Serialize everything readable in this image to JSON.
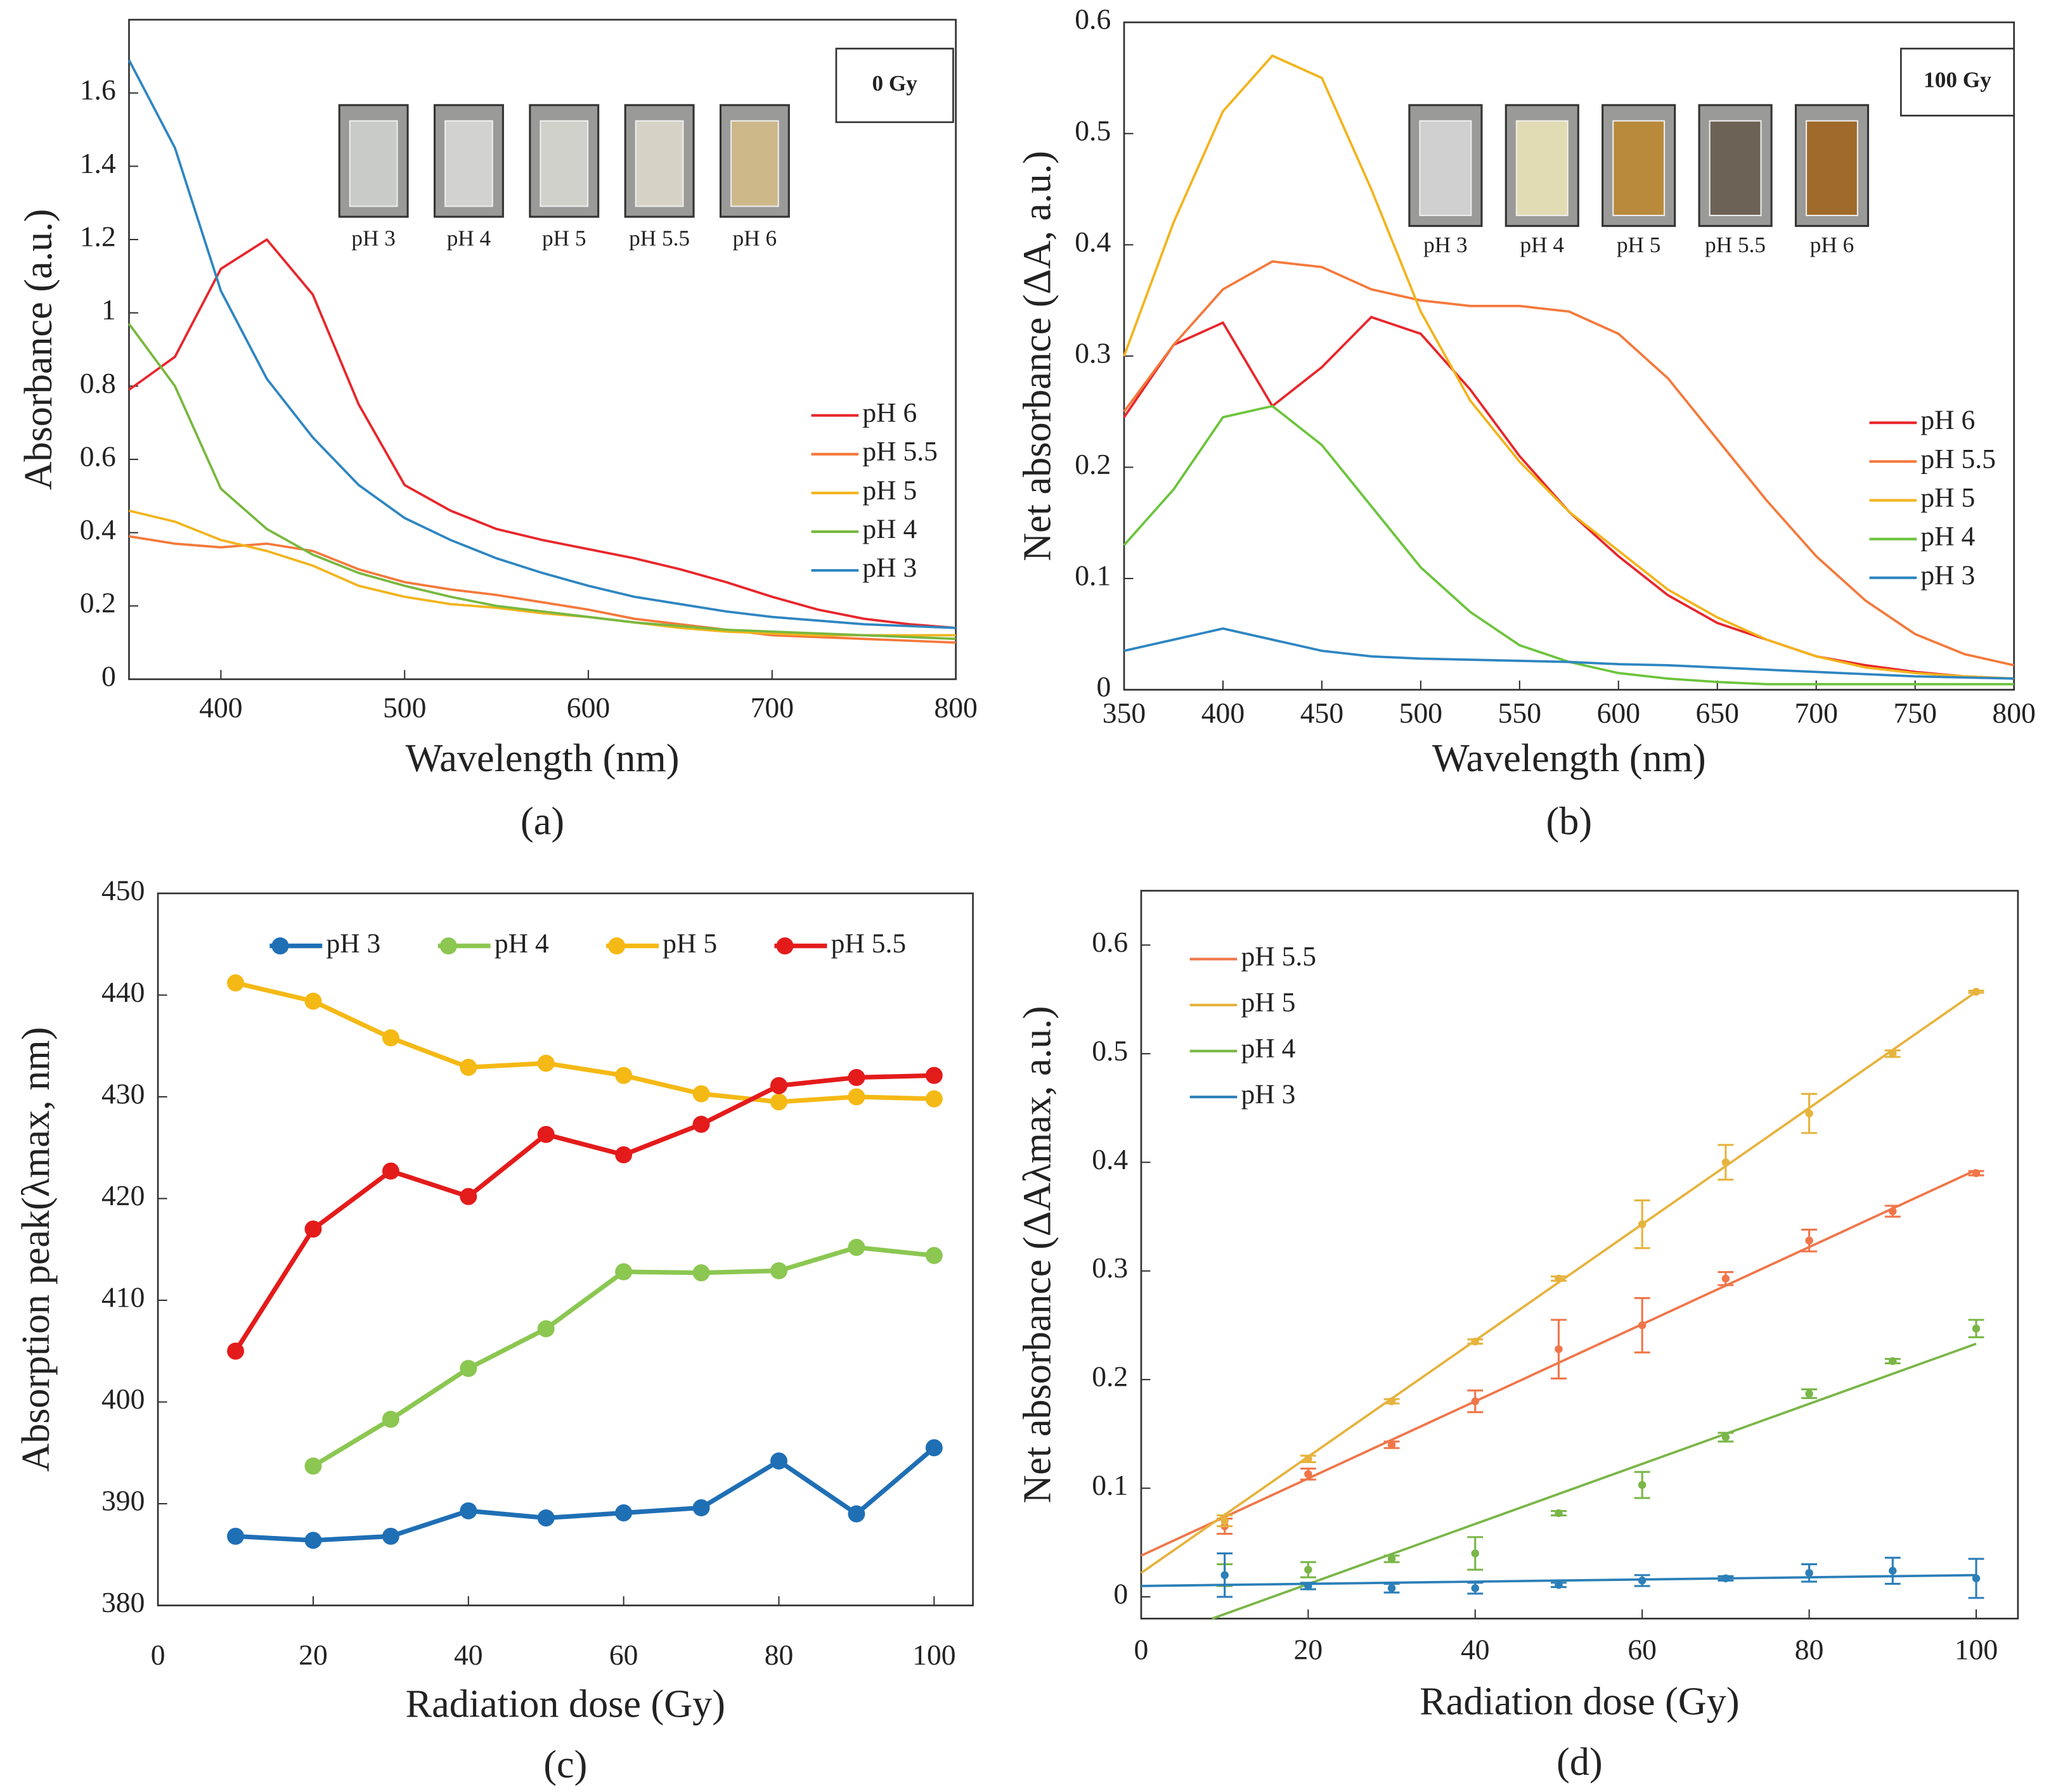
{
  "chart_data": [
    {
      "type": "line",
      "panel_label": "(a)",
      "x_label": "Wavelength (nm)",
      "y_label": "Absorbance (a.u.)",
      "xlim": [
        350,
        800
      ],
      "xticks": [
        400,
        500,
        600,
        700,
        800
      ],
      "ylim": [
        0,
        1.8
      ],
      "yticks": [
        0,
        0.2,
        0.4,
        0.6,
        0.8,
        1,
        1.2,
        1.4,
        1.6
      ],
      "legend": "center right",
      "dose_label": "0 Gy",
      "vials": [
        "pH 3",
        "pH 4",
        "pH 5",
        "pH 5.5",
        "pH 6"
      ],
      "vial_colors": [
        "#c9cbc9",
        "#d2d3d1",
        "#d1d1cb",
        "#d6d3c6",
        "#cdb88a"
      ],
      "x": [
        350,
        375,
        400,
        425,
        450,
        475,
        500,
        525,
        550,
        575,
        600,
        625,
        650,
        675,
        700,
        725,
        750,
        775,
        800
      ],
      "series": [
        {
          "name": "pH 6",
          "color": "#e8262b",
          "values": [
            0.79,
            0.88,
            1.12,
            1.2,
            1.05,
            0.75,
            0.53,
            0.46,
            0.41,
            0.38,
            0.355,
            0.33,
            0.3,
            0.265,
            0.225,
            0.19,
            0.165,
            0.15,
            0.14
          ]
        },
        {
          "name": "pH 5.5",
          "color": "#f4793b",
          "values": [
            0.39,
            0.37,
            0.36,
            0.37,
            0.35,
            0.3,
            0.265,
            0.245,
            0.23,
            0.21,
            0.19,
            0.165,
            0.15,
            0.135,
            0.12,
            0.115,
            0.11,
            0.105,
            0.1
          ]
        },
        {
          "name": "pH 5",
          "color": "#f2b41c",
          "values": [
            0.46,
            0.43,
            0.38,
            0.35,
            0.31,
            0.255,
            0.225,
            0.205,
            0.195,
            0.18,
            0.17,
            0.155,
            0.14,
            0.13,
            0.125,
            0.12,
            0.12,
            0.12,
            0.12
          ]
        },
        {
          "name": "pH 4",
          "color": "#78b83f",
          "values": [
            0.97,
            0.8,
            0.52,
            0.41,
            0.34,
            0.29,
            0.255,
            0.225,
            0.2,
            0.185,
            0.17,
            0.155,
            0.145,
            0.135,
            0.13,
            0.125,
            0.12,
            0.115,
            0.11
          ]
        },
        {
          "name": "pH 3",
          "color": "#2e86c1",
          "values": [
            1.69,
            1.45,
            1.06,
            0.82,
            0.66,
            0.53,
            0.44,
            0.38,
            0.33,
            0.29,
            0.255,
            0.225,
            0.205,
            0.185,
            0.17,
            0.16,
            0.15,
            0.145,
            0.14
          ]
        }
      ]
    },
    {
      "type": "line",
      "panel_label": "(b)",
      "x_label": "Wavelength (nm)",
      "y_label": "Net absorbance (ΔA, a.u.)",
      "xlim": [
        350,
        800
      ],
      "xticks": [
        350,
        400,
        450,
        500,
        550,
        600,
        650,
        700,
        750,
        800
      ],
      "ylim": [
        0,
        0.6
      ],
      "yticks": [
        0,
        0.1,
        0.2,
        0.3,
        0.4,
        0.5,
        0.6
      ],
      "legend": "center right",
      "dose_label": "100 Gy",
      "vials": [
        "pH 3",
        "pH 4",
        "pH 5",
        "pH 5.5",
        "pH 6"
      ],
      "vial_colors": [
        "#cfd0cf",
        "#e2dcb4",
        "#b98a3c",
        "#6d6256",
        "#a06a2a"
      ],
      "x": [
        350,
        375,
        400,
        425,
        450,
        475,
        500,
        525,
        550,
        575,
        600,
        625,
        650,
        675,
        700,
        725,
        750,
        775,
        800
      ],
      "series": [
        {
          "name": "pH 6",
          "color": "#e8262b",
          "values": [
            0.245,
            0.31,
            0.33,
            0.255,
            0.29,
            0.335,
            0.32,
            0.27,
            0.21,
            0.16,
            0.12,
            0.085,
            0.06,
            0.045,
            0.03,
            0.022,
            0.016,
            0.012,
            0.01
          ]
        },
        {
          "name": "pH 5.5",
          "color": "#f4793b",
          "values": [
            0.25,
            0.31,
            0.36,
            0.385,
            0.38,
            0.36,
            0.35,
            0.345,
            0.345,
            0.34,
            0.32,
            0.28,
            0.225,
            0.17,
            0.12,
            0.08,
            0.05,
            0.032,
            0.022
          ]
        },
        {
          "name": "pH 5",
          "color": "#f2b41c",
          "values": [
            0.3,
            0.42,
            0.52,
            0.57,
            0.55,
            0.45,
            0.34,
            0.26,
            0.205,
            0.16,
            0.125,
            0.09,
            0.065,
            0.045,
            0.03,
            0.02,
            0.015,
            0.012,
            0.01
          ]
        },
        {
          "name": "pH 4",
          "color": "#6cc43c",
          "values": [
            0.13,
            0.18,
            0.245,
            0.255,
            0.22,
            0.165,
            0.11,
            0.07,
            0.04,
            0.025,
            0.015,
            0.01,
            0.007,
            0.005,
            0.005,
            0.005,
            0.005,
            0.005,
            0.005
          ]
        },
        {
          "name": "pH 3",
          "color": "#2e86c1",
          "values": [
            0.035,
            0.045,
            0.055,
            0.045,
            0.035,
            0.03,
            0.028,
            0.027,
            0.026,
            0.025,
            0.023,
            0.022,
            0.02,
            0.018,
            0.016,
            0.014,
            0.012,
            0.011,
            0.01
          ]
        }
      ]
    },
    {
      "type": "line",
      "markers": true,
      "panel_label": "(c)",
      "x_label": "Radiation dose (Gy)",
      "y_label": "Absorption peak(λmax, nm)",
      "xlim": [
        0,
        105
      ],
      "xticks": [
        0,
        20,
        40,
        60,
        80,
        100
      ],
      "ylim": [
        380,
        450
      ],
      "yticks": [
        380,
        390,
        400,
        410,
        420,
        430,
        440,
        450
      ],
      "legend": "upper center",
      "x": [
        10,
        20,
        30,
        40,
        50,
        60,
        70,
        80,
        90,
        100
      ],
      "series": [
        {
          "name": "pH 3",
          "color": "#1f6fb5",
          "values": [
            386.8,
            386.4,
            386.8,
            389.3,
            388.6,
            389.1,
            389.6,
            394.2,
            389,
            395.5
          ]
        },
        {
          "name": "pH 4",
          "color": "#8bc751",
          "values": [
            null,
            393.7,
            398.3,
            403.3,
            407.2,
            412.8,
            412.7,
            412.9,
            415.2,
            414.4
          ]
        },
        {
          "name": "pH 5",
          "color": "#f5b915",
          "values": [
            441.2,
            439.4,
            435.8,
            432.9,
            433.3,
            432.1,
            430.3,
            429.5,
            430,
            429.8
          ]
        },
        {
          "name": "pH 5.5",
          "color": "#e41b1b",
          "values": [
            405,
            417,
            422.7,
            420.2,
            426.3,
            424.3,
            427.3,
            431.1,
            431.9,
            432.1
          ]
        }
      ]
    },
    {
      "type": "scatter",
      "panel_label": "(d)",
      "x_label": "Radiation dose (Gy)",
      "y_label": "Net absorbance (ΔAλmax, a.u.)",
      "xlim": [
        0,
        105
      ],
      "xticks": [
        0,
        20,
        40,
        60,
        80,
        100
      ],
      "ylim": [
        -0.02,
        0.65
      ],
      "yticks": [
        0,
        0.1,
        0.2,
        0.3,
        0.4,
        0.5,
        0.6
      ],
      "legend": "upper left",
      "x": [
        10,
        20,
        30,
        40,
        50,
        60,
        70,
        80,
        90,
        100
      ],
      "series": [
        {
          "name": "pH 5.5",
          "color": "#f0764a",
          "values": [
            0.065,
            0.113,
            0.14,
            0.18,
            0.228,
            0.25,
            0.293,
            0.328,
            0.355,
            0.39
          ],
          "errors": [
            0.007,
            0.005,
            0.003,
            0.01,
            0.027,
            0.025,
            0.006,
            0.01,
            0.005,
            0.002
          ],
          "fit_x": [
            0,
            100
          ],
          "fit_y": [
            0.038,
            0.393
          ]
        },
        {
          "name": "pH 5",
          "color": "#e6b33d",
          "values": [
            0.07,
            0.127,
            0.18,
            0.235,
            0.293,
            0.343,
            0.4,
            0.445,
            0.5,
            0.557
          ],
          "errors": [
            0.005,
            0.003,
            0.002,
            0.002,
            0.002,
            0.022,
            0.016,
            0.018,
            0.003,
            0.001
          ],
          "fit_x": [
            0,
            100
          ],
          "fit_y": [
            0.022,
            0.557
          ]
        },
        {
          "name": "pH 4",
          "color": "#7ab648",
          "values": [
            0.02,
            0.025,
            0.035,
            0.04,
            0.077,
            0.103,
            0.147,
            0.187,
            0.217,
            0.247
          ],
          "errors": [
            0.01,
            0.007,
            0.003,
            0.015,
            0.002,
            0.012,
            0.004,
            0.004,
            0.002,
            0.008
          ],
          "fit_x": [
            8.5,
            100
          ],
          "fit_y": [
            -0.02,
            0.233
          ]
        },
        {
          "name": "pH 3",
          "color": "#2c7fb8",
          "values": [
            0.02,
            0.01,
            0.008,
            0.008,
            0.011,
            0.015,
            0.017,
            0.022,
            0.024,
            0.017
          ],
          "errors": [
            0.02,
            0.003,
            0.004,
            0.005,
            0.002,
            0.005,
            0.002,
            0.008,
            0.012,
            0.018
          ],
          "fit_x": [
            0,
            100
          ],
          "fit_y": [
            0.01,
            0.02
          ]
        }
      ]
    }
  ]
}
